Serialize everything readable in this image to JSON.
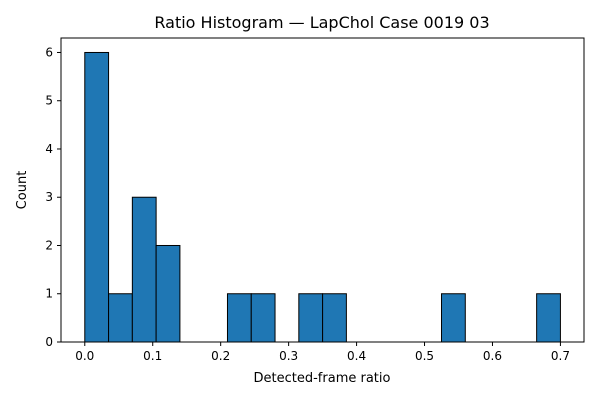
{
  "chart_data": {
    "type": "bar",
    "title": "Ratio Histogram — LapChol Case 0019 03",
    "xlabel": "Detected-frame ratio",
    "ylabel": "Count",
    "xlim": [
      -0.035,
      0.7347
    ],
    "ylim": [
      0,
      6.3
    ],
    "xticks": [
      0.0,
      0.1,
      0.2,
      0.3,
      0.4,
      0.5,
      0.6,
      0.7
    ],
    "xtick_labels": [
      "0.0",
      "0.1",
      "0.2",
      "0.3",
      "0.4",
      "0.5",
      "0.6",
      "0.7"
    ],
    "yticks": [
      0,
      1,
      2,
      3,
      4,
      5,
      6
    ],
    "ytick_labels": [
      "0",
      "1",
      "2",
      "3",
      "4",
      "5",
      "6"
    ],
    "bin_edges": [
      0.0,
      0.035,
      0.07,
      0.105,
      0.14,
      0.175,
      0.21,
      0.245,
      0.28,
      0.315,
      0.35,
      0.385,
      0.42,
      0.455,
      0.49,
      0.525,
      0.56,
      0.595,
      0.63,
      0.665,
      0.7
    ],
    "counts": [
      6,
      1,
      3,
      2,
      0,
      0,
      1,
      1,
      0,
      1,
      1,
      0,
      0,
      0,
      0,
      1,
      0,
      0,
      0,
      1
    ],
    "bar_color": "#1f77b4",
    "edge_color": "#000000",
    "grid": false,
    "legend": false
  }
}
